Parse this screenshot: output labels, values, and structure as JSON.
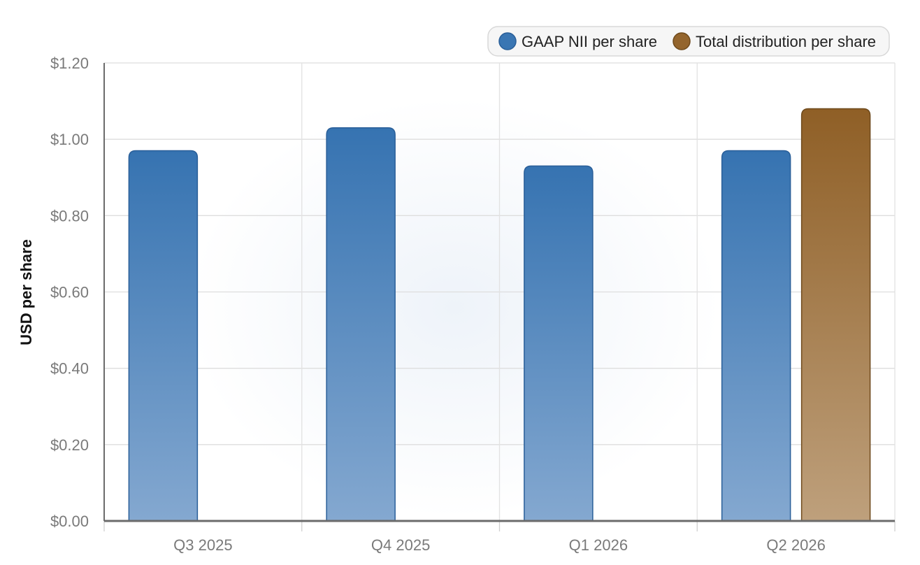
{
  "chart_data": {
    "type": "bar",
    "title": "",
    "xlabel": "",
    "ylabel": "USD per share",
    "categories": [
      "Q3 2025",
      "Q4 2025",
      "Q1 2026",
      "Q2 2026"
    ],
    "series": [
      {
        "name": "GAAP NII per share",
        "values": [
          0.97,
          1.03,
          0.93,
          0.97
        ],
        "color": "#3a76b3",
        "stroke": "#2a5f99"
      },
      {
        "name": "Total distribution per share",
        "values": [
          null,
          null,
          null,
          1.08
        ],
        "color": "#94652d",
        "stroke": "#6f4a1c"
      }
    ],
    "ylim": [
      0,
      1.2
    ],
    "yticks": [
      0,
      0.2,
      0.4,
      0.6,
      0.8,
      1.0,
      1.2
    ],
    "ytick_labels": [
      "$0.00",
      "$0.20",
      "$0.40",
      "$0.60",
      "$0.80",
      "$1.00",
      "$1.20"
    ],
    "grid": true,
    "legend_position": "top-right"
  }
}
